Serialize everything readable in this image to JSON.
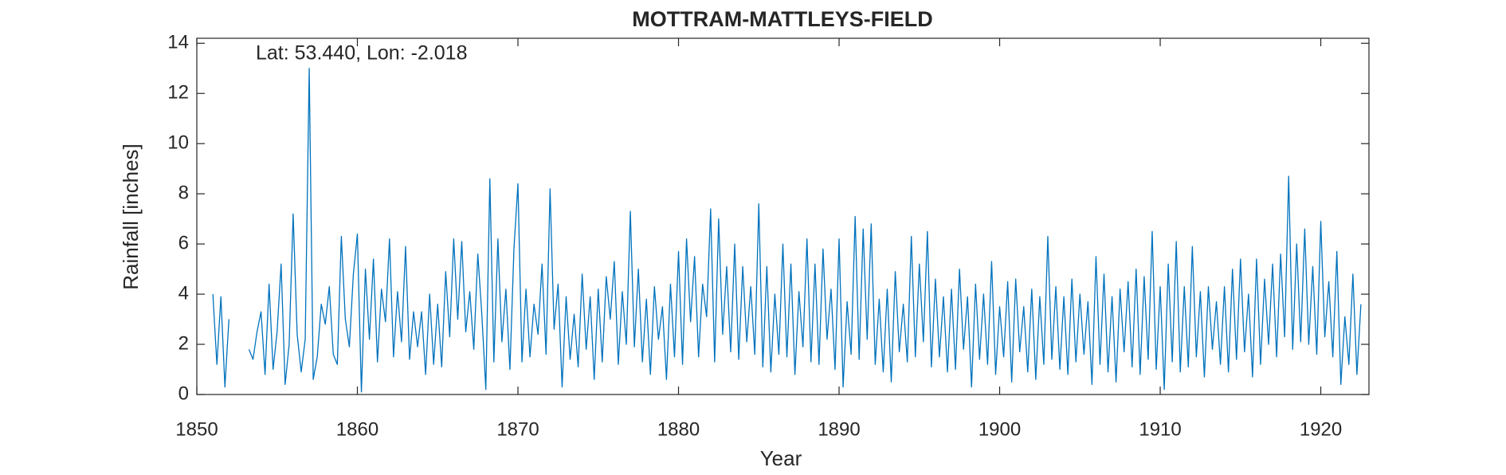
{
  "chart_data": {
    "type": "line",
    "title": "MOTTRAM-MATTLEYS-FIELD",
    "annotation": "Lat: 53.440, Lon: -2.018",
    "xlabel": "Year",
    "ylabel": "Rainfall [inches]",
    "xlim": [
      1850,
      1923
    ],
    "ylim": [
      0,
      14.2
    ],
    "xticks": [
      1850,
      1860,
      1870,
      1880,
      1890,
      1900,
      1910,
      1920
    ],
    "yticks": [
      0,
      2,
      4,
      6,
      8,
      10,
      12,
      14
    ],
    "grid": false,
    "x": [
      1851,
      1851.25,
      1851.5,
      1851.75,
      1852,
      1852.25,
      1852.5,
      1852.75,
      1853,
      1853.25,
      1853.5,
      1853.75,
      1854,
      1854.25,
      1854.5,
      1854.75,
      1855,
      1855.25,
      1855.5,
      1855.75,
      1856,
      1856.25,
      1856.5,
      1856.75,
      1857,
      1857.25,
      1857.5,
      1857.75,
      1858,
      1858.25,
      1858.5,
      1858.75,
      1859,
      1859.25,
      1859.5,
      1859.75,
      1860,
      1860.25,
      1860.5,
      1860.75,
      1861,
      1861.25,
      1861.5,
      1861.75,
      1862,
      1862.25,
      1862.5,
      1862.75,
      1863,
      1863.25,
      1863.5,
      1863.75,
      1864,
      1864.25,
      1864.5,
      1864.75,
      1865,
      1865.25,
      1865.5,
      1865.75,
      1866,
      1866.25,
      1866.5,
      1866.75,
      1867,
      1867.25,
      1867.5,
      1867.75,
      1868,
      1868.25,
      1868.5,
      1868.75,
      1869,
      1869.25,
      1869.5,
      1869.75,
      1870,
      1870.25,
      1870.5,
      1870.75,
      1871,
      1871.25,
      1871.5,
      1871.75,
      1872,
      1872.25,
      1872.5,
      1872.75,
      1873,
      1873.25,
      1873.5,
      1873.75,
      1874,
      1874.25,
      1874.5,
      1874.75,
      1875,
      1875.25,
      1875.5,
      1875.75,
      1876,
      1876.25,
      1876.5,
      1876.75,
      1877,
      1877.25,
      1877.5,
      1877.75,
      1878,
      1878.25,
      1878.5,
      1878.75,
      1879,
      1879.25,
      1879.5,
      1879.75,
      1880,
      1880.25,
      1880.5,
      1880.75,
      1881,
      1881.25,
      1881.5,
      1881.75,
      1882,
      1882.25,
      1882.5,
      1882.75,
      1883,
      1883.25,
      1883.5,
      1883.75,
      1884,
      1884.25,
      1884.5,
      1884.75,
      1885,
      1885.25,
      1885.5,
      1885.75,
      1886,
      1886.25,
      1886.5,
      1886.75,
      1887,
      1887.25,
      1887.5,
      1887.75,
      1888,
      1888.25,
      1888.5,
      1888.75,
      1889,
      1889.25,
      1889.5,
      1889.75,
      1890,
      1890.25,
      1890.5,
      1890.75,
      1891,
      1891.25,
      1891.5,
      1891.75,
      1892,
      1892.25,
      1892.5,
      1892.75,
      1893,
      1893.25,
      1893.5,
      1893.75,
      1894,
      1894.25,
      1894.5,
      1894.75,
      1895,
      1895.25,
      1895.5,
      1895.75,
      1896,
      1896.25,
      1896.5,
      1896.75,
      1897,
      1897.25,
      1897.5,
      1897.75,
      1898,
      1898.25,
      1898.5,
      1898.75,
      1899,
      1899.25,
      1899.5,
      1899.75,
      1900,
      1900.25,
      1900.5,
      1900.75,
      1901,
      1901.25,
      1901.5,
      1901.75,
      1902,
      1902.25,
      1902.5,
      1902.75,
      1903,
      1903.25,
      1903.5,
      1903.75,
      1904,
      1904.25,
      1904.5,
      1904.75,
      1905,
      1905.25,
      1905.5,
      1905.75,
      1906,
      1906.25,
      1906.5,
      1906.75,
      1907,
      1907.25,
      1907.5,
      1907.75,
      1908,
      1908.25,
      1908.5,
      1908.75,
      1909,
      1909.25,
      1909.5,
      1909.75,
      1910,
      1910.25,
      1910.5,
      1910.75,
      1911,
      1911.25,
      1911.5,
      1911.75,
      1912,
      1912.25,
      1912.5,
      1912.75,
      1913,
      1913.25,
      1913.5,
      1913.75,
      1914,
      1914.25,
      1914.5,
      1914.75,
      1915,
      1915.25,
      1915.5,
      1915.75,
      1916,
      1916.25,
      1916.5,
      1916.75,
      1917,
      1917.25,
      1917.5,
      1917.75,
      1918,
      1918.25,
      1918.5,
      1918.75,
      1919,
      1919.25,
      1919.5,
      1919.75,
      1920,
      1920.25,
      1920.5,
      1920.75,
      1921,
      1921.25,
      1921.5,
      1921.75,
      1922,
      1922.25,
      1922.5
    ],
    "series": [
      {
        "color": "#0072BD",
        "values": [
          4.0,
          1.2,
          3.9,
          0.3,
          3.0,
          null,
          null,
          null,
          null,
          1.8,
          1.4,
          2.5,
          3.3,
          0.8,
          4.4,
          1.0,
          2.5,
          5.2,
          0.4,
          2.0,
          7.2,
          2.4,
          0.9,
          2.2,
          13.0,
          0.6,
          1.5,
          3.6,
          2.8,
          4.3,
          1.6,
          1.2,
          6.3,
          3.0,
          1.9,
          4.8,
          6.4,
          0.1,
          5.0,
          2.2,
          5.4,
          1.3,
          4.2,
          2.9,
          6.2,
          1.5,
          4.1,
          2.1,
          5.9,
          1.4,
          3.3,
          1.9,
          3.3,
          0.8,
          4.0,
          1.2,
          3.6,
          1.1,
          4.9,
          2.3,
          6.2,
          3.0,
          6.1,
          2.5,
          4.1,
          1.8,
          5.6,
          3.2,
          0.2,
          8.6,
          1.3,
          6.2,
          2.1,
          4.2,
          1.0,
          5.8,
          8.4,
          1.3,
          4.2,
          1.5,
          3.6,
          2.4,
          5.2,
          1.6,
          8.2,
          2.6,
          4.4,
          0.3,
          3.9,
          1.4,
          3.2,
          1.1,
          4.8,
          1.8,
          3.9,
          0.6,
          4.2,
          1.3,
          4.7,
          3.0,
          5.3,
          1.2,
          4.1,
          2.0,
          7.3,
          1.9,
          5.0,
          1.3,
          3.8,
          0.8,
          4.3,
          2.2,
          3.5,
          0.6,
          4.4,
          1.5,
          5.7,
          1.2,
          6.2,
          2.9,
          5.5,
          1.5,
          4.4,
          3.1,
          7.4,
          1.3,
          7.0,
          2.4,
          5.1,
          1.7,
          6.0,
          1.4,
          5.1,
          2.1,
          4.3,
          1.6,
          7.6,
          1.1,
          5.1,
          0.9,
          4.0,
          1.6,
          6.0,
          1.5,
          5.2,
          0.8,
          4.1,
          1.9,
          6.2,
          1.3,
          5.2,
          1.2,
          5.8,
          2.2,
          4.2,
          1.0,
          6.2,
          0.3,
          3.7,
          1.6,
          7.1,
          1.4,
          6.6,
          2.2,
          6.8,
          1.2,
          3.8,
          0.9,
          4.2,
          0.5,
          4.9,
          1.7,
          3.6,
          1.3,
          6.3,
          1.5,
          5.2,
          2.1,
          6.5,
          1.1,
          4.6,
          1.5,
          3.9,
          0.9,
          4.2,
          1.0,
          5.0,
          1.8,
          3.9,
          0.3,
          4.4,
          1.4,
          4.0,
          1.2,
          5.3,
          0.8,
          3.5,
          1.5,
          4.5,
          0.5,
          4.6,
          1.7,
          3.5,
          0.9,
          4.2,
          0.6,
          3.9,
          1.2,
          6.3,
          1.4,
          4.3,
          1.0,
          3.9,
          0.8,
          4.6,
          1.3,
          4.0,
          1.6,
          3.7,
          0.4,
          5.5,
          1.2,
          4.8,
          0.9,
          3.9,
          0.5,
          4.2,
          1.7,
          4.5,
          1.1,
          5.0,
          0.8,
          4.7,
          1.4,
          6.5,
          1.0,
          4.3,
          0.2,
          5.2,
          1.3,
          6.1,
          0.9,
          4.3,
          1.1,
          5.9,
          1.5,
          4.1,
          0.7,
          4.3,
          1.8,
          3.7,
          1.2,
          4.3,
          0.9,
          5.0,
          1.4,
          5.4,
          1.7,
          4.0,
          0.7,
          5.4,
          1.2,
          4.6,
          2.0,
          5.2,
          1.5,
          5.6,
          2.3,
          8.7,
          1.8,
          6.0,
          2.1,
          6.6,
          2.0,
          5.1,
          1.6,
          6.9,
          2.3,
          4.5,
          1.5,
          5.7,
          0.4,
          3.1,
          1.2,
          4.8,
          0.8,
          3.6
        ]
      }
    ]
  }
}
